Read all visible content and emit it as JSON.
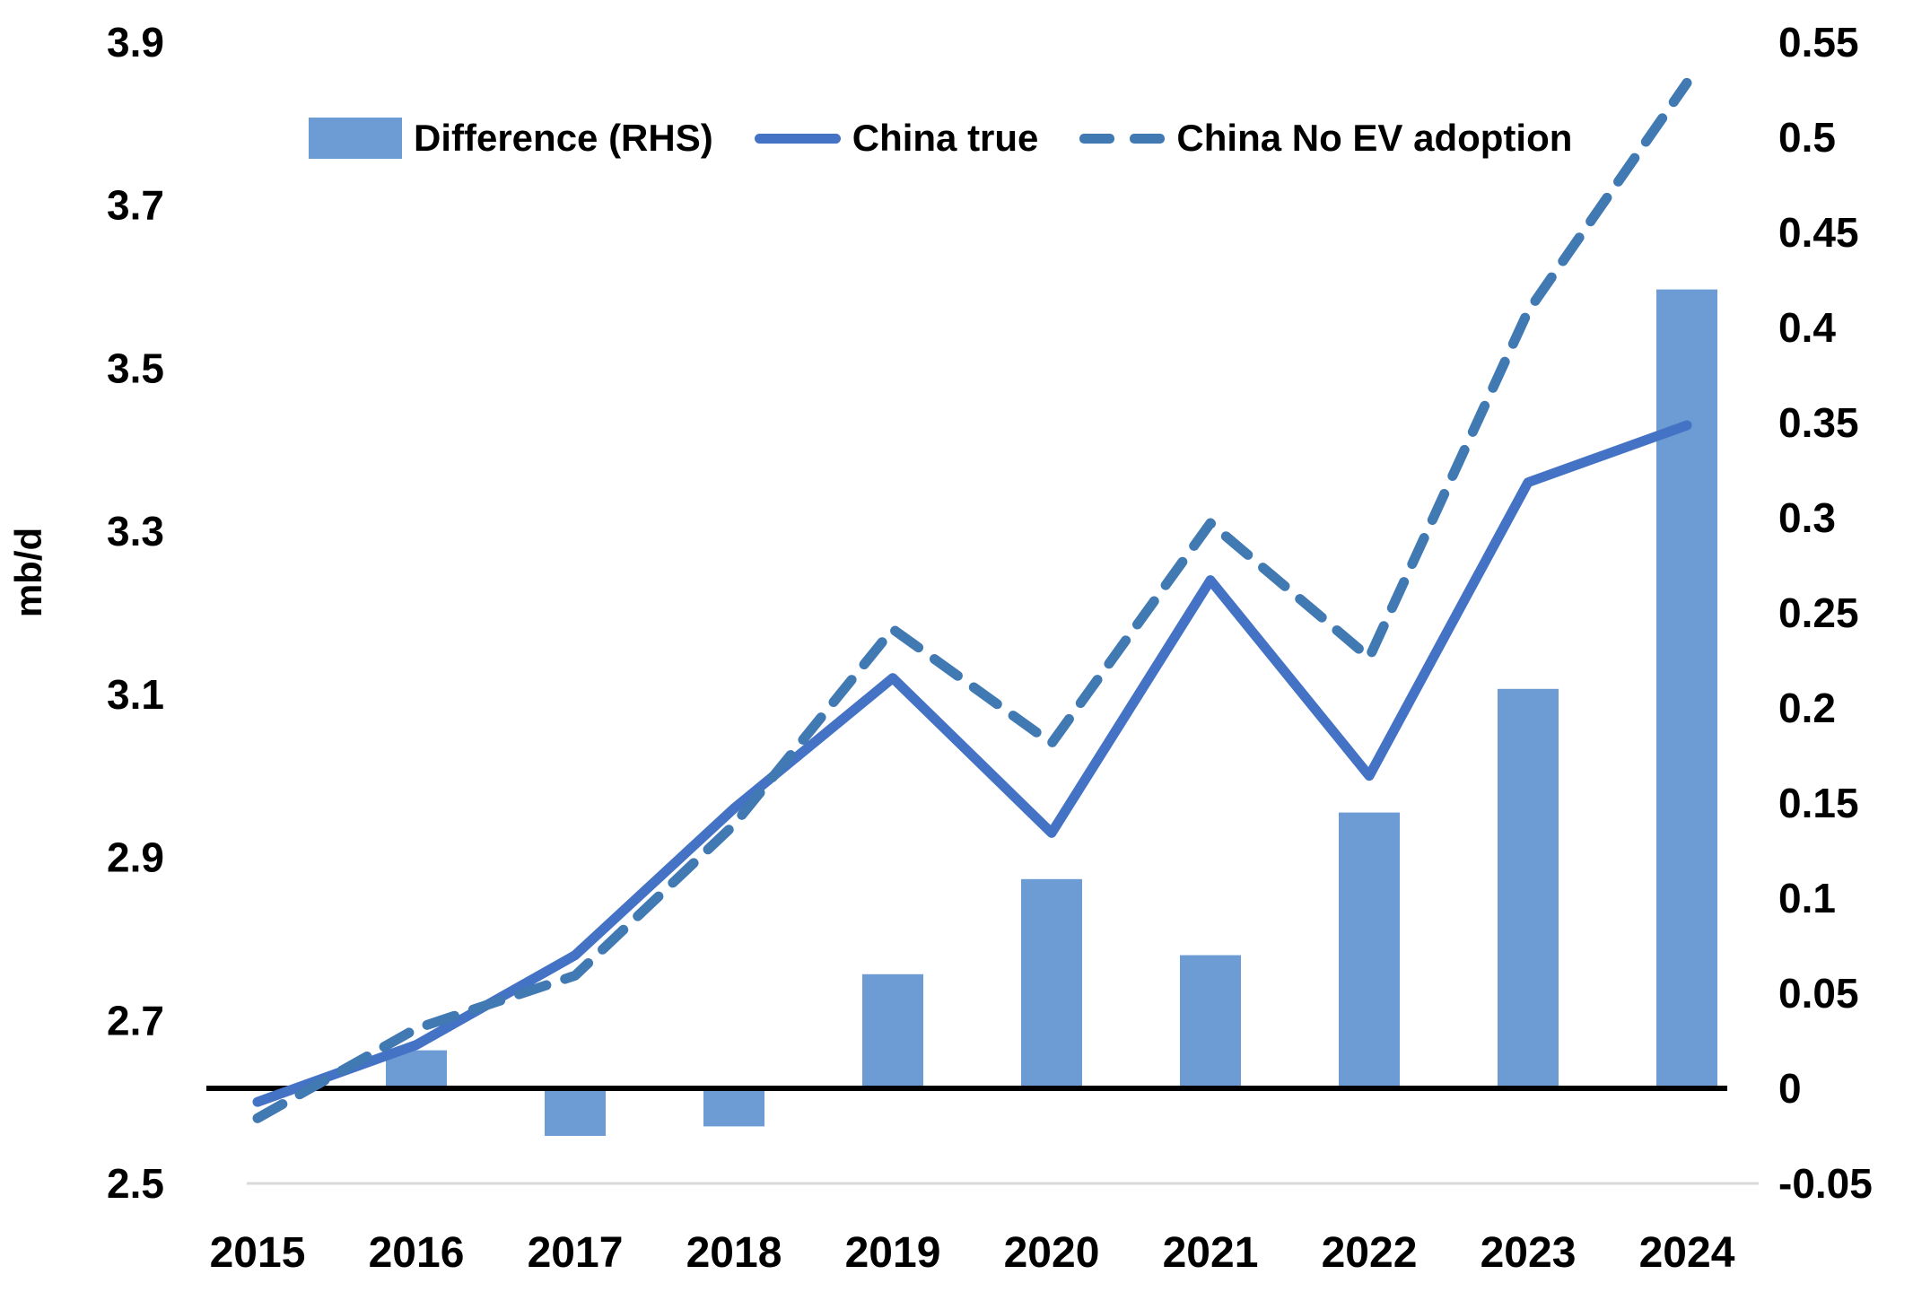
{
  "chart_data": {
    "type": "combo",
    "categories": [
      "2015",
      "2016",
      "2017",
      "2018",
      "2019",
      "2020",
      "2021",
      "2022",
      "2023",
      "2024"
    ],
    "series": [
      {
        "name": "Difference (RHS)",
        "type": "bar",
        "axis": "right",
        "color": "#6D9BD3",
        "values": [
          0,
          0.02,
          -0.025,
          -0.02,
          0.06,
          0.11,
          0.07,
          0.145,
          0.21,
          0.42
        ]
      },
      {
        "name": "China true",
        "type": "line",
        "style": "solid",
        "axis": "left",
        "color": "#4472C4",
        "values": [
          2.6,
          2.67,
          2.78,
          2.96,
          3.12,
          2.93,
          3.24,
          3.0,
          3.36,
          3.43
        ]
      },
      {
        "name": "China No EV adoption",
        "type": "line",
        "style": "dashed",
        "axis": "left",
        "color": "#4179B3",
        "values": [
          2.58,
          2.69,
          2.755,
          2.94,
          3.18,
          3.04,
          3.31,
          3.145,
          3.57,
          3.85
        ]
      }
    ],
    "left_axis": {
      "title": "mb/d",
      "min": 2.5,
      "max": 3.9,
      "tick_labels": [
        "3.9",
        "3.7",
        "3.5",
        "3.3",
        "3.1",
        "2.9",
        "2.7",
        "2.5"
      ]
    },
    "right_axis": {
      "min": -0.05,
      "max": 0.55,
      "tick_labels": [
        "0.55",
        "0.5",
        "0.45",
        "0.4",
        "0.35",
        "0.3",
        "0.25",
        "0.2",
        "0.15",
        "0.1",
        "0.05",
        "0",
        "-0.05"
      ]
    },
    "legend": {
      "position": "top",
      "items": [
        {
          "label": "Difference (RHS)",
          "marker": "bar"
        },
        {
          "label": "China true",
          "marker": "solid-line"
        },
        {
          "label": "China No EV adoption",
          "marker": "dashed-line"
        }
      ]
    },
    "grid": "bottom-gridline-only",
    "colors": {
      "bar": "#6D9BD3",
      "solid_line": "#4472C4",
      "dashed_line": "#4179B3",
      "zero_line": "#000000",
      "gridline": "#D9D9D9"
    }
  }
}
